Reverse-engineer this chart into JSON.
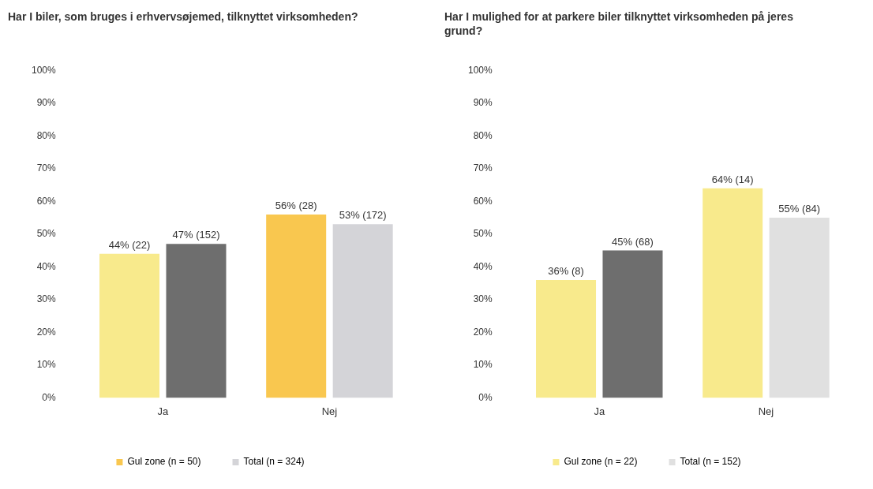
{
  "chart_data": [
    {
      "type": "bar",
      "title": "Har I biler, som bruges i erhvervsøjemed, tilknyttet virksomheden?",
      "categories": [
        "Ja",
        "Nej"
      ],
      "ylim": [
        0,
        100
      ],
      "yticks": [
        {
          "value": 0,
          "label": "0%"
        },
        {
          "value": 10,
          "label": "10%"
        },
        {
          "value": 20,
          "label": "20%"
        },
        {
          "value": 30,
          "label": "30%"
        },
        {
          "value": 40,
          "label": "40%"
        },
        {
          "value": 50,
          "label": "50%"
        },
        {
          "value": 60,
          "label": "60%"
        },
        {
          "value": 70,
          "label": "70%"
        },
        {
          "value": 80,
          "label": "80%"
        },
        {
          "value": 90,
          "label": "90%"
        },
        {
          "value": 100,
          "label": "100%"
        }
      ],
      "grid": false,
      "legend": "bottom",
      "series": [
        {
          "name": "Gul zone (n = 50)",
          "color": "#f9c74f",
          "colors": [
            "#f8ea8c",
            "#f9c74f"
          ],
          "values": [
            44,
            56
          ],
          "value_labels": [
            "44% (22)",
            "56% (28)"
          ]
        },
        {
          "name": "Total (n = 324)",
          "color": "#d4d4d8",
          "colors": [
            "#6e6e6e",
            "#d4d4d8"
          ],
          "values": [
            47,
            53
          ],
          "value_labels": [
            "47% (152)",
            "53% (172)"
          ]
        }
      ]
    },
    {
      "type": "bar",
      "title": "Har I mulighed for at parkere biler tilknyttet virksomheden på jeres grund?",
      "categories": [
        "Ja",
        "Nej"
      ],
      "ylim": [
        0,
        100
      ],
      "yticks": [
        {
          "value": 0,
          "label": "0%"
        },
        {
          "value": 10,
          "label": "10%"
        },
        {
          "value": 20,
          "label": "20%"
        },
        {
          "value": 30,
          "label": "30%"
        },
        {
          "value": 40,
          "label": "40%"
        },
        {
          "value": 50,
          "label": "50%"
        },
        {
          "value": 60,
          "label": "60%"
        },
        {
          "value": 70,
          "label": "70%"
        },
        {
          "value": 80,
          "label": "80%"
        },
        {
          "value": 90,
          "label": "90%"
        },
        {
          "value": 100,
          "label": "100%"
        }
      ],
      "grid": false,
      "legend": "bottom",
      "series": [
        {
          "name": "Gul zone (n = 22)",
          "color": "#f8ea8c",
          "colors": [
            "#f8ea8c",
            "#f8ea8c"
          ],
          "values": [
            36,
            64
          ],
          "value_labels": [
            "36% (8)",
            "64% (14)"
          ]
        },
        {
          "name": "Total (n = 152)",
          "color": "#e0e0e0",
          "colors": [
            "#6e6e6e",
            "#e0e0e0"
          ],
          "values": [
            45,
            55
          ],
          "value_labels": [
            "45% (68)",
            "55% (84)"
          ]
        }
      ]
    }
  ]
}
